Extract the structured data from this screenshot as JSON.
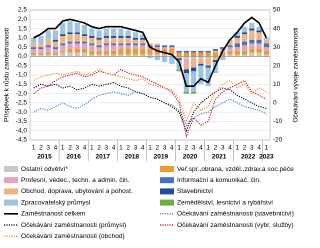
{
  "chart_data": {
    "type": "bar",
    "y_label": "Příspěvek k růstu zaměstnanosti",
    "y2_label": "Očekávání vývoje zaměstnanosti",
    "categories": [
      "1",
      "2",
      "3",
      "4",
      "1",
      "2",
      "3",
      "4",
      "1",
      "2",
      "3",
      "4",
      "1",
      "2",
      "3",
      "4",
      "1",
      "2",
      "3",
      "4",
      "1",
      "2",
      "3",
      "4",
      "1",
      "2",
      "3",
      "4",
      "1",
      "2",
      "3",
      "4",
      "1"
    ],
    "years": [
      "2015",
      "2016",
      "2017",
      "2018",
      "2019",
      "2020",
      "2021",
      "2022",
      "2023"
    ],
    "ylim": [
      -4.5,
      2.5
    ],
    "yticks": [
      {
        "value": 2.5,
        "label": "2,5"
      },
      {
        "value": 2.0,
        "label": "2,0"
      },
      {
        "value": 1.5,
        "label": "1,5"
      },
      {
        "value": 1.0,
        "label": "1,0"
      },
      {
        "value": 0.5,
        "label": "0,5"
      },
      {
        "value": 0,
        "label": "0,0"
      },
      {
        "value": -0.5,
        "label": "-0,5"
      },
      {
        "value": -1.0,
        "label": "-1,0"
      },
      {
        "value": -1.5,
        "label": "-1,5"
      },
      {
        "value": -2.0,
        "label": "-2,0"
      },
      {
        "value": -2.5,
        "label": "-2,5"
      },
      {
        "value": -3.0,
        "label": "-3,0"
      },
      {
        "value": -3.5,
        "label": "-3,5"
      },
      {
        "value": -4.0,
        "label": "-4,0"
      },
      {
        "value": -4.5,
        "label": "-4,5"
      }
    ],
    "y2lim": [
      -20,
      50
    ],
    "y2ticks": [
      50,
      40,
      30,
      20,
      10,
      0,
      -10,
      -20
    ],
    "grid": true,
    "series": [
      {
        "name": "Ostatní odvětví*",
        "type": "bar",
        "color": "#c8c8c8",
        "values": [
          0.1,
          0.1,
          0.1,
          0.1,
          0.2,
          0.2,
          0.2,
          0.2,
          0.1,
          0.1,
          0.1,
          0.1,
          0.1,
          0.1,
          0.1,
          0.1,
          0.1,
          0.1,
          0.1,
          0.1,
          0,
          -0.1,
          -0.1,
          -0.1,
          -0.1,
          0,
          0,
          0.1,
          0.1,
          0.1,
          0.2,
          0.2,
          0.1
        ]
      },
      {
        "name": "Veř.spr.,obrana, vzděl.,zdrav.a soc.péče",
        "type": "bar",
        "color": "#ed9a2f",
        "values": [
          0.1,
          0.1,
          0.1,
          0.1,
          0.1,
          0.2,
          0.2,
          0.2,
          0.2,
          0.2,
          0.2,
          0.2,
          0.3,
          0.3,
          0.3,
          0.3,
          0.3,
          0.3,
          0.3,
          0.3,
          0.2,
          0.2,
          0.2,
          0.2,
          0.2,
          0.2,
          0.2,
          0.2,
          0.2,
          0.2,
          0.2,
          0.2,
          0.2
        ]
      },
      {
        "name": "Profesní, vědec., techn. a admin. čin.",
        "type": "bar",
        "color": "#e9a3b8",
        "values": [
          0.2,
          0.2,
          0.3,
          0.2,
          0.3,
          0.3,
          0.3,
          0.3,
          0.3,
          0.2,
          0.3,
          0.3,
          0.2,
          0.2,
          0.2,
          0.2,
          0.1,
          0.1,
          0.1,
          0.1,
          0,
          -0.2,
          -0.1,
          0,
          0,
          0.1,
          0.2,
          0.2,
          0.2,
          0.3,
          0.3,
          0.3,
          0.2
        ]
      },
      {
        "name": "Informační a komunikač. čin.",
        "type": "bar",
        "color": "#4472c4",
        "values": [
          0.1,
          0.1,
          0.1,
          0.1,
          0.1,
          0.1,
          0.1,
          0.1,
          0.1,
          0.1,
          0.1,
          0.1,
          0.1,
          0.1,
          0.1,
          0.1,
          0.1,
          0.1,
          0.1,
          0.1,
          0.1,
          0.1,
          0.1,
          0.1,
          0.1,
          0.1,
          0.1,
          0.1,
          0.2,
          0.2,
          0.2,
          0.2,
          0.2
        ]
      },
      {
        "name": "Obchod, doprava, ubytování a pohost.",
        "type": "bar",
        "color": "#f4b183",
        "values": [
          0.2,
          0.2,
          0.3,
          0.3,
          0.4,
          0.4,
          0.4,
          0.3,
          0.3,
          0.3,
          0.3,
          0.3,
          0.3,
          0.3,
          0.2,
          0.2,
          0.1,
          0.1,
          0,
          0,
          -0.1,
          -0.4,
          -0.4,
          -0.3,
          -0.4,
          -0.2,
          0,
          0.2,
          0.3,
          0.4,
          0.5,
          0.4,
          0.2
        ]
      },
      {
        "name": "Stavebnictví",
        "type": "bar",
        "color": "#1f4e99",
        "values": [
          0,
          0,
          0,
          0.1,
          0.1,
          0.1,
          0.1,
          0.1,
          0.1,
          0.1,
          0.1,
          0.1,
          0.1,
          0.1,
          0.1,
          0.1,
          0,
          0,
          0,
          0,
          -0.1,
          -0.2,
          -0.2,
          -0.1,
          -0.1,
          -0.1,
          0,
          0,
          0.1,
          0.1,
          0.1,
          0.1,
          0
        ]
      },
      {
        "name": "Zpracovatelský průmysl",
        "type": "bar",
        "color": "#9dc3e6",
        "values": [
          0.3,
          0.4,
          0.5,
          0.5,
          0.6,
          0.6,
          0.5,
          0.5,
          0.4,
          0.4,
          0.4,
          0.4,
          0.4,
          0.3,
          0.3,
          0.2,
          -0.1,
          -0.2,
          -0.3,
          -0.4,
          -0.5,
          -1.0,
          -1.1,
          -1.0,
          -1.0,
          -0.6,
          -0.2,
          0.1,
          0.2,
          0.3,
          0.3,
          0.2,
          0.1
        ]
      },
      {
        "name": "Zemědělství, lesnictví a rybářství",
        "type": "bar",
        "color": "#70ad47",
        "values": [
          0,
          0,
          0,
          0,
          0,
          0,
          0,
          0,
          0,
          0,
          0,
          0,
          0,
          0,
          0,
          0,
          0,
          0,
          0,
          0,
          -0.1,
          -0.1,
          -0.1,
          0,
          0,
          0,
          0,
          0,
          0,
          0,
          0,
          0,
          0
        ]
      },
      {
        "name": "Zaměstnanost celkem",
        "type": "line",
        "color": "#000000",
        "width": 1.6,
        "values": [
          1.0,
          1.2,
          1.5,
          1.5,
          1.9,
          2.0,
          1.9,
          1.8,
          1.6,
          1.5,
          1.6,
          1.6,
          1.6,
          1.5,
          1.4,
          1.3,
          0.5,
          0.3,
          0.2,
          0.1,
          -0.3,
          -1.6,
          -1.6,
          -1.2,
          -1.4,
          -0.5,
          0.3,
          0.9,
          1.3,
          1.8,
          2.1,
          1.8,
          1.0
        ]
      },
      {
        "name": "Očekávání zaměstnanosti (stavebnictví)",
        "type": "line",
        "axis": "y2",
        "dotted": true,
        "color": "#2e75b6",
        "values": [
          -5,
          -3,
          -4,
          -2,
          0,
          -2,
          -3,
          -1,
          2,
          4,
          5,
          6,
          5,
          4,
          6,
          5,
          3,
          2,
          0,
          -1,
          -4,
          -12,
          -8,
          -6,
          -5,
          -2,
          0,
          2,
          0,
          -2,
          -3,
          -4,
          -6
        ]
      },
      {
        "name": "Očekávání zaměstnanosti (průmysl)",
        "type": "line",
        "axis": "y2",
        "dotted": true,
        "color": "#000000",
        "values": [
          8,
          10,
          9,
          10,
          8,
          9,
          7,
          8,
          10,
          9,
          10,
          11,
          9,
          8,
          6,
          5,
          3,
          2,
          0,
          -2,
          -5,
          -15,
          -5,
          0,
          3,
          6,
          8,
          7,
          4,
          2,
          0,
          -2,
          -3
        ]
      },
      {
        "name": "Očekávání zaměstnanosti (vybr. služby)",
        "type": "line",
        "axis": "y2",
        "dotted": true,
        "color": "#c00000",
        "values": [
          5,
          8,
          9,
          12,
          14,
          15,
          16,
          14,
          15,
          17,
          16,
          15,
          18,
          16,
          15,
          14,
          12,
          10,
          8,
          6,
          0,
          -18,
          -8,
          -12,
          -10,
          2,
          6,
          8,
          10,
          12,
          6,
          4,
          2
        ]
      },
      {
        "name": "Očekávání zaměstnanosti (obchod)",
        "type": "line",
        "axis": "y2",
        "dotted": true,
        "color": "#ed7d31",
        "values": [
          12,
          14,
          15,
          16,
          15,
          16,
          17,
          15,
          16,
          18,
          16,
          15,
          14,
          13,
          12,
          13,
          10,
          9,
          8,
          7,
          2,
          -10,
          0,
          -4,
          -2,
          6,
          10,
          12,
          8,
          10,
          5,
          8,
          6
        ]
      }
    ]
  }
}
